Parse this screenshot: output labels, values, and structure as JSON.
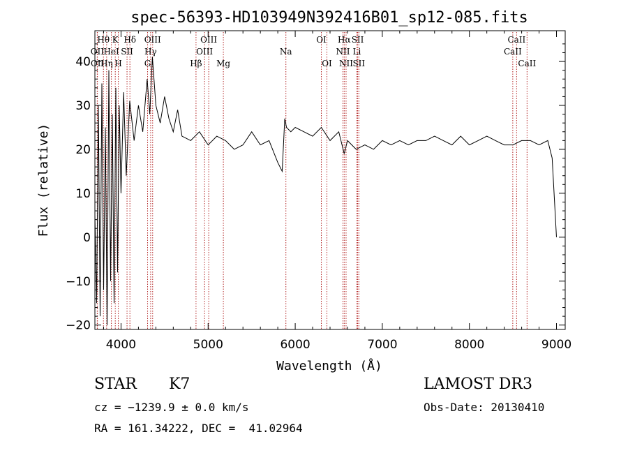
{
  "chart_data": {
    "type": "line",
    "title": "spec-56393-HD103949N392416B01_sp12-085.fits",
    "xlabel": "Wavelength (Å)",
    "ylabel": "Flux (relative)",
    "xlim": [
      3700,
      9100
    ],
    "ylim": [
      -21,
      47
    ],
    "xticks": [
      4000,
      5000,
      6000,
      7000,
      8000,
      9000
    ],
    "yticks": [
      -20,
      -10,
      0,
      10,
      20,
      30,
      40
    ],
    "grid": false,
    "series": [
      {
        "color": "#000000",
        "x": [
          3700,
          3720,
          3740,
          3760,
          3780,
          3800,
          3820,
          3840,
          3860,
          3880,
          3900,
          3920,
          3940,
          3960,
          3980,
          4000,
          4030,
          4060,
          4100,
          4150,
          4200,
          4250,
          4300,
          4330,
          4360,
          4400,
          4450,
          4500,
          4550,
          4600,
          4650,
          4700,
          4800,
          4900,
          5000,
          5100,
          5200,
          5300,
          5400,
          5500,
          5600,
          5700,
          5800,
          5850,
          5880,
          5900,
          5950,
          6000,
          6100,
          6200,
          6300,
          6400,
          6500,
          6563,
          6600,
          6700,
          6800,
          6900,
          7000,
          7100,
          7200,
          7300,
          7400,
          7500,
          7600,
          7700,
          7800,
          7900,
          8000,
          8100,
          8200,
          8300,
          8400,
          8500,
          8600,
          8700,
          8800,
          8900,
          8950,
          9000
        ],
        "y": [
          5,
          -15,
          30,
          -18,
          35,
          -12,
          25,
          -20,
          38,
          -10,
          28,
          -15,
          34,
          -8,
          30,
          10,
          33,
          14,
          31,
          22,
          30,
          24,
          36,
          28,
          41,
          30,
          26,
          32,
          27,
          24,
          29,
          23,
          22,
          24,
          21,
          23,
          22,
          20,
          21,
          24,
          21,
          22,
          17,
          15,
          27,
          25,
          24,
          25,
          24,
          23,
          25,
          22,
          24,
          19,
          22,
          20,
          21,
          20,
          22,
          21,
          22,
          21,
          22,
          22,
          23,
          22,
          21,
          23,
          21,
          22,
          23,
          22,
          21,
          21,
          22,
          22,
          21,
          22,
          18,
          0
        ]
      }
    ],
    "spectral_lines": [
      {
        "label": "Hθ",
        "x": 3798,
        "row": 1
      },
      {
        "label": "OII",
        "x": 3727,
        "row": 2
      },
      {
        "label": "OII",
        "x": 3729,
        "row": 3
      },
      {
        "label": "Hη",
        "x": 3835,
        "row": 3
      },
      {
        "label": "K",
        "x": 3934,
        "row": 1
      },
      {
        "label": "HeI",
        "x": 3889,
        "row": 2
      },
      {
        "label": "SII",
        "x": 4069,
        "row": 2
      },
      {
        "label": "H",
        "x": 3969,
        "row": 3
      },
      {
        "label": "Hδ",
        "x": 4102,
        "row": 1
      },
      {
        "label": "OIII",
        "x": 4363,
        "row": 1
      },
      {
        "label": "Hγ",
        "x": 4340,
        "row": 2
      },
      {
        "label": "G",
        "x": 4305,
        "row": 3
      },
      {
        "label": "OIII",
        "x": 5007,
        "row": 1
      },
      {
        "label": "OIII",
        "x": 4959,
        "row": 2
      },
      {
        "label": "Hβ",
        "x": 4861,
        "row": 3
      },
      {
        "label": "Mg",
        "x": 5175,
        "row": 3
      },
      {
        "label": "Na",
        "x": 5893,
        "row": 2
      },
      {
        "label": "OI",
        "x": 6300,
        "row": 1
      },
      {
        "label": "OI",
        "x": 6364,
        "row": 3
      },
      {
        "label": "Hα",
        "x": 6563,
        "row": 1
      },
      {
        "label": "NII",
        "x": 6548,
        "row": 2
      },
      {
        "label": "NII",
        "x": 6584,
        "row": 3
      },
      {
        "label": "SII",
        "x": 6717,
        "row": 1
      },
      {
        "label": "Li",
        "x": 6708,
        "row": 2
      },
      {
        "label": "SII",
        "x": 6731,
        "row": 3
      },
      {
        "label": "CaII",
        "x": 8542,
        "row": 1
      },
      {
        "label": "CaII",
        "x": 8498,
        "row": 2
      },
      {
        "label": "CaII",
        "x": 8662,
        "row": 3
      }
    ]
  },
  "info": {
    "object_class": "STAR",
    "subclass": "K7",
    "survey": "LAMOST DR3",
    "cz": "cz = −1239.9 ± 0.0 km/s",
    "obs_date": "Obs-Date: 20130410",
    "coords": "RA = 161.34222, DEC =  41.02964"
  }
}
